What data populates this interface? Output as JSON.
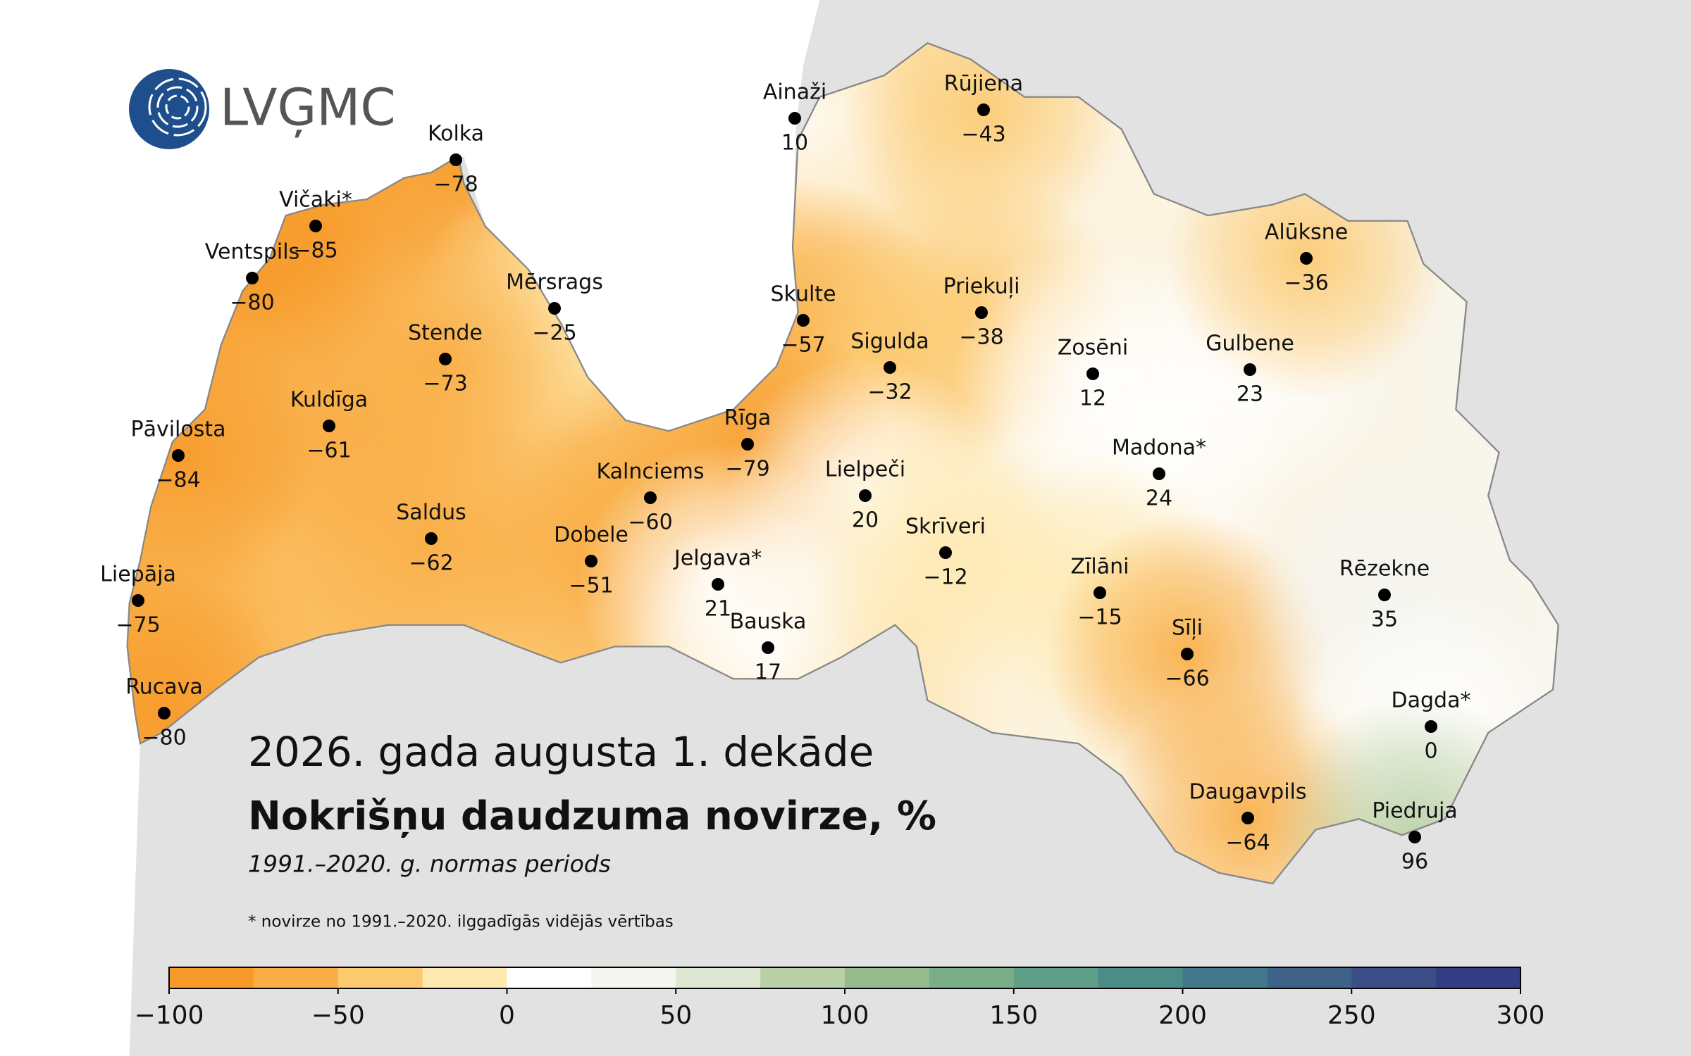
{
  "logo": {
    "text": "LVĢMC"
  },
  "title": "2026. gada augusta 1. dekāde",
  "subtitle": "Nokrišņu daudzuma novirze, %",
  "period": "1991.–2020. g. normas periods",
  "note": "* novirze no 1991.–2020. ilggadīgās vidējās vērtības",
  "stations": [
    {
      "name": "Kolka",
      "value": -78,
      "label": "−78"
    },
    {
      "name": "Vičaki*",
      "value": -85,
      "label": "−85"
    },
    {
      "name": "Ventspils",
      "value": -80,
      "label": "−80"
    },
    {
      "name": "Mērsrags",
      "value": -25,
      "label": "−25"
    },
    {
      "name": "Stende",
      "value": -73,
      "label": "−73"
    },
    {
      "name": "Kuldīga",
      "value": -61,
      "label": "−61"
    },
    {
      "name": "Pāvilosta",
      "value": -84,
      "label": "−84"
    },
    {
      "name": "Saldus",
      "value": -62,
      "label": "−62"
    },
    {
      "name": "Liepāja",
      "value": -75,
      "label": "−75"
    },
    {
      "name": "Rucava",
      "value": -80,
      "label": "−80"
    },
    {
      "name": "Ainaži",
      "value": 10,
      "label": "10"
    },
    {
      "name": "Rūjiena",
      "value": -43,
      "label": "−43"
    },
    {
      "name": "Skulte",
      "value": -57,
      "label": "−57"
    },
    {
      "name": "Sigulda",
      "value": -32,
      "label": "−32"
    },
    {
      "name": "Priekuļi",
      "value": -38,
      "label": "−38"
    },
    {
      "name": "Rīga",
      "value": -79,
      "label": "−79"
    },
    {
      "name": "Kalnciems",
      "value": -60,
      "label": "−60"
    },
    {
      "name": "Dobele",
      "value": -51,
      "label": "−51"
    },
    {
      "name": "Jelgava*",
      "value": 21,
      "label": "21"
    },
    {
      "name": "Bauska",
      "value": 17,
      "label": "17"
    },
    {
      "name": "Lielpeči",
      "value": 20,
      "label": "20"
    },
    {
      "name": "Skrīveri",
      "value": -12,
      "label": "−12"
    },
    {
      "name": "Zosēni",
      "value": 12,
      "label": "12"
    },
    {
      "name": "Gulbene",
      "value": 23,
      "label": "23"
    },
    {
      "name": "Alūksne",
      "value": -36,
      "label": "−36"
    },
    {
      "name": "Madona*",
      "value": 24,
      "label": "24"
    },
    {
      "name": "Zīlāni",
      "value": -15,
      "label": "−15"
    },
    {
      "name": "Sīļi",
      "value": -66,
      "label": "−66"
    },
    {
      "name": "Daugavpils",
      "value": -64,
      "label": "−64"
    },
    {
      "name": "Rēzekne",
      "value": 35,
      "label": "35"
    },
    {
      "name": "Dagda*",
      "value": 0,
      "label": "0"
    },
    {
      "name": "Piedruja",
      "value": 96,
      "label": "96"
    }
  ],
  "colorbar": {
    "range": [
      -100,
      300
    ],
    "colors": [
      "#f79a2a",
      "#f9ad45",
      "#fcc96f",
      "#fee9b0",
      "#ffffff",
      "#f4f4f0",
      "#dde7d2",
      "#b7d0a5",
      "#96bc8e",
      "#7aae88",
      "#5f9f87",
      "#4c8c88",
      "#43788b",
      "#3f6388",
      "#3b4e86",
      "#333d83"
    ],
    "ticks": [
      {
        "value": -100,
        "label": "−100"
      },
      {
        "value": -50,
        "label": "−50"
      },
      0,
      50,
      100,
      150,
      200,
      250,
      300
    ]
  }
}
